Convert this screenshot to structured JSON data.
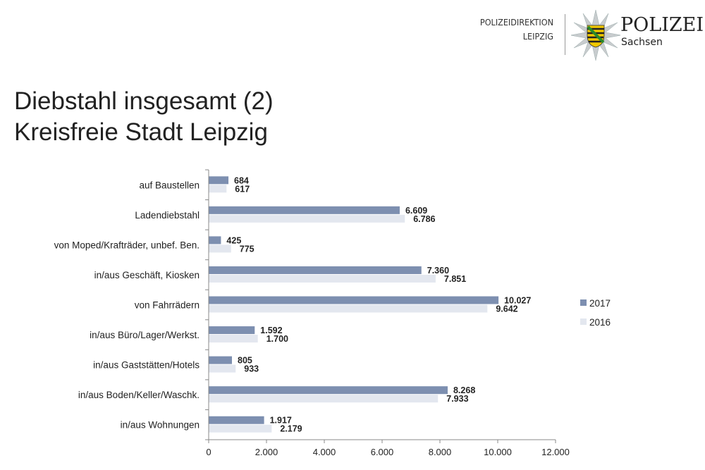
{
  "header": {
    "direktion_line1": "POLIZEIDIREKTION",
    "direktion_line2": "LEIPZIG",
    "brand": "POLIZEI",
    "brand_sub": "Sachsen"
  },
  "title": {
    "line1": "Diebstahl insgesamt (2)",
    "line2": "Kreisfreie Stadt Leipzig"
  },
  "chart_data": {
    "type": "bar",
    "orientation": "horizontal",
    "categories": [
      "auf Baustellen",
      "Ladendiebstahl",
      "von Moped/Krafträder, unbef. Ben.",
      "in/aus Geschäft, Kiosken",
      "von Fahrrädern",
      "in/aus Büro/Lager/Werkst.",
      "in/aus Gaststätten/Hotels",
      "in/aus Boden/Keller/Waschk.",
      "in/aus Wohnungen"
    ],
    "series": [
      {
        "name": "2017",
        "color": "#7d8fb0",
        "values": [
          684,
          6609,
          425,
          7360,
          10027,
          1592,
          805,
          8268,
          1917
        ],
        "labels": [
          "684",
          "6.609",
          "425",
          "7.360",
          "10.027",
          "1.592",
          "805",
          "8.268",
          "1.917"
        ]
      },
      {
        "name": "2016",
        "color": "#e3e7ef",
        "values": [
          617,
          6786,
          775,
          7851,
          9642,
          1700,
          933,
          7933,
          2179
        ],
        "labels": [
          "617",
          "6.786",
          "775",
          "7.851",
          "9.642",
          "1.700",
          "933",
          "7.933",
          "2.179"
        ]
      }
    ],
    "xlim": [
      0,
      12000
    ],
    "xticks": [
      0,
      2000,
      4000,
      6000,
      8000,
      10000,
      12000
    ],
    "xtick_labels": [
      "0",
      "2.000",
      "4.000",
      "6.000",
      "8.000",
      "10.000",
      "12.000"
    ],
    "legend": "right"
  }
}
